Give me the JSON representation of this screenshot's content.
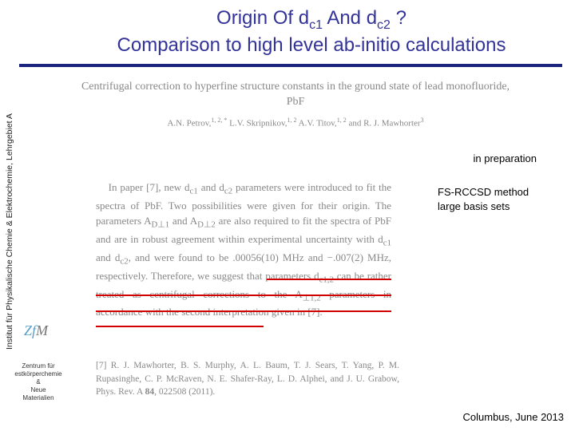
{
  "header": {
    "title_html": "Origin Of d<span class=\"sub\">c1</span> And d<span class=\"sub\">c2</span> ?<br>Comparison to high level ab-initio calculations"
  },
  "sidebar": {
    "text": "Institut für Physikalische Chemie & Elektrochemie, Lehrgebiet A"
  },
  "paper": {
    "title": "Centrifugal correction to hyperfine structure constants in the ground state of lead monofluoride, PbF",
    "authors_html": "A.N. Petrov,<span class=\"sup\">1, 2, *</span> L.V. Skripnikov,<span class=\"sup\">1, 2</span> A.V. Titov,<span class=\"sup\">1, 2</span> and R. J. Mawhorter<span class=\"sup\">3</span>"
  },
  "annotations": {
    "in_preparation": "in preparation",
    "method1": "FS-RCCSD method",
    "method2": "large basis sets"
  },
  "body_html": "&nbsp;&nbsp;&nbsp;&nbsp;In paper [7], new d<sub>c1</sub> and d<sub>c2</sub> parameters were introduced to fit the spectra of PbF. Two possibilities were given for their origin. The parameters A<sub>D⊥1</sub> and A<sub>D⊥2</sub> are also required to fit the spectra of PbF and are in robust agreement within experimental uncertainty with d<sub>c1</sub> and d<sub>c2</sub>, and were found to be .00056(10) MHz and −.007(2) MHz, respectively. Therefore, we suggest that parameters d<sub>c1,2</sub> can be rather treated as centrifugal corrections to the A<sub>⊥1,2</sub> parameters in accordance with the second interpretation given in [7].",
  "ref_html": "[7] R. J. Mawhorter, B. S. Murphy, A. L. Baum, T. J. Sears, T. Yang, P. M. Rupasinghe, C. P. McRaven, N. E. Shafer-Ray, L. D. Alphei, and J. U. Grabow, Phys. Rev. A <b>84</b>, 022508 (2011).",
  "zfm": {
    "label_html": "Zf<span class=\"m\">M</span>",
    "block_html": "Zentrum für<br>estkörperchemie<br>&amp;<br>Neue<br>Materialien"
  },
  "footer": "Columbus, June 2013",
  "colors": {
    "title": "#333399",
    "rule": "#1a237e",
    "underline": "#d40000",
    "body_grey": "#888888"
  }
}
